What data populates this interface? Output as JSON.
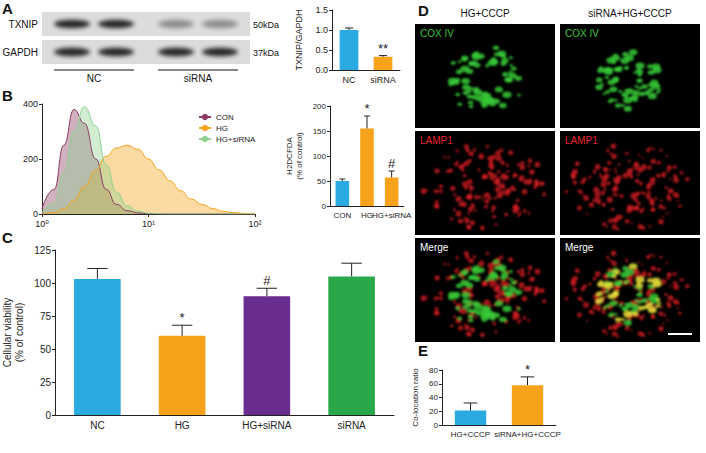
{
  "panel_labels": [
    "A",
    "B",
    "C",
    "D",
    "E"
  ],
  "blot": {
    "rows": [
      {
        "label": "TXNIP",
        "size": "50kDa"
      },
      {
        "label": "GAPDH",
        "size": "37kDa"
      }
    ],
    "groups": [
      "NC",
      "siRNA"
    ]
  },
  "microscopy": {
    "columns": [
      "HG+CCCP",
      "siRNA+HG+CCCP"
    ],
    "rows": [
      {
        "label": "COX IV",
        "color": "#3cc43c"
      },
      {
        "label": "LAMP1",
        "color": "#e8262b"
      },
      {
        "label": "Merge",
        "color": "#ffffff"
      }
    ]
  },
  "chart_data": [
    {
      "type": "bar",
      "y_label": "TXNIP/GAPDH",
      "categories": [
        "NC",
        "siRNA"
      ],
      "values": [
        1.0,
        0.33
      ],
      "errors": [
        0.05,
        0.03
      ],
      "colors": [
        "#29abe2",
        "#f7a21b"
      ],
      "ylim": [
        0,
        1.5
      ],
      "yticks": [
        {
          "value": 0,
          "label": "0.0"
        },
        {
          "value": 0.5,
          "label": "0.5"
        },
        {
          "value": 1,
          "label": "1.0"
        },
        {
          "value": 1.5,
          "label": "1.5"
        }
      ],
      "annotations": [
        {
          "category": "siRNA",
          "text": "**"
        }
      ]
    },
    {
      "type": "area",
      "log": "x",
      "legend": "upper right",
      "x": [
        1,
        1.3,
        1.6,
        2,
        2.5,
        3.2,
        4,
        5,
        6.3,
        8,
        10,
        12.6,
        16,
        20,
        25,
        32,
        40,
        50,
        63,
        80,
        100
      ],
      "series": [
        {
          "name": "CON",
          "color": "#8b3a62",
          "values": [
            20,
            90,
            250,
            380,
            330,
            200,
            90,
            35,
            12,
            4,
            1,
            0,
            0,
            0,
            0,
            0,
            0,
            0,
            0,
            0,
            0
          ]
        },
        {
          "name": "HG",
          "color": "#f7a21b",
          "values": [
            0,
            5,
            20,
            50,
            100,
            160,
            210,
            240,
            250,
            235,
            200,
            160,
            120,
            85,
            55,
            35,
            20,
            10,
            5,
            2,
            0
          ]
        },
        {
          "name": "HG+siRNA",
          "color": "#8fd18f",
          "values": [
            5,
            40,
            150,
            300,
            390,
            320,
            180,
            80,
            30,
            10,
            3,
            1,
            0,
            0,
            0,
            0,
            0,
            0,
            0,
            0,
            0
          ]
        }
      ],
      "xlim": [
        1,
        100
      ],
      "xticks": [
        {
          "value": 1,
          "label": "10⁰"
        },
        {
          "value": 10,
          "label": "10¹"
        },
        {
          "value": 100,
          "label": "10²"
        }
      ],
      "ylim": [
        0,
        400
      ],
      "yticks": [
        0,
        200,
        400
      ]
    },
    {
      "type": "bar",
      "y_label": "H2DCFDA\n(% of control)",
      "categories": [
        "CON",
        "HG",
        "HG+siRNA"
      ],
      "values": [
        50,
        155,
        57
      ],
      "errors": [
        4,
        25,
        13
      ],
      "colors": [
        "#29abe2",
        "#f7a21b",
        "#f7a21b"
      ],
      "ylim": [
        0,
        200
      ],
      "yticks": [
        0,
        50,
        100,
        150,
        200
      ],
      "annotations": [
        {
          "category": "HG",
          "text": "*"
        },
        {
          "category": "HG+siRNA",
          "text": "#"
        }
      ]
    },
    {
      "type": "bar",
      "y_label": "Cellular viability\n(% of control)",
      "categories": [
        "NC",
        "HG",
        "HG+siRNA",
        "siRNA"
      ],
      "values": [
        103,
        60,
        90,
        105
      ],
      "errors": [
        8,
        8,
        6,
        10
      ],
      "colors": [
        "#29abe2",
        "#f7a21b",
        "#6b2c8f",
        "#29a84a"
      ],
      "ylim": [
        0,
        125
      ],
      "yticks": [
        0,
        25,
        50,
        75,
        100,
        125
      ],
      "annotations": [
        {
          "category": "HG",
          "text": "*"
        },
        {
          "category": "HG+siRNA",
          "text": "#"
        }
      ]
    },
    {
      "type": "bar",
      "y_label": "Co-location ratio",
      "categories": [
        "HG+CCCP",
        "siRNA+HG+CCCP"
      ],
      "values": [
        21,
        58
      ],
      "errors": [
        11,
        12
      ],
      "colors": [
        "#29abe2",
        "#f7a21b"
      ],
      "ylim": [
        0,
        80
      ],
      "yticks": [
        0,
        20,
        40,
        60,
        80
      ],
      "annotations": [
        {
          "category": "siRNA+HG+CCCP",
          "text": "*"
        }
      ]
    }
  ]
}
